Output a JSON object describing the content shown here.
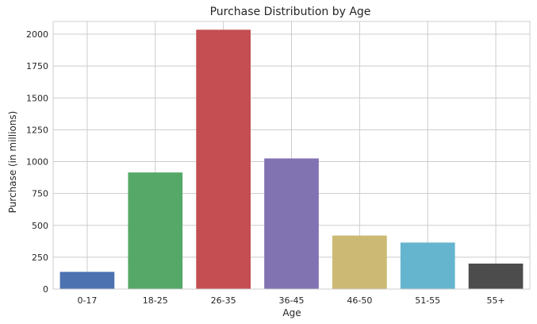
{
  "chart_data": {
    "type": "bar",
    "title": "Purchase Distribution by Age",
    "xlabel": "Age",
    "ylabel": "Purchase (in millions)",
    "categories": [
      "0-17",
      "18-25",
      "26-35",
      "36-45",
      "46-50",
      "51-55",
      "55+"
    ],
    "values": [
      135,
      915,
      2035,
      1025,
      420,
      365,
      200
    ],
    "colors": [
      "#4c72b0",
      "#55a868",
      "#c44e52",
      "#8172b2",
      "#ccb974",
      "#64b5cd",
      "#4c4c4c"
    ],
    "ylim": [
      0,
      2100
    ],
    "yticks": [
      0,
      250,
      500,
      750,
      1000,
      1250,
      1500,
      1750,
      2000
    ],
    "ytick_labels": [
      "0",
      "250",
      "500",
      "750",
      "1000",
      "1250",
      "1500",
      "1750",
      "2000"
    ],
    "grid": true,
    "legend": "none"
  }
}
